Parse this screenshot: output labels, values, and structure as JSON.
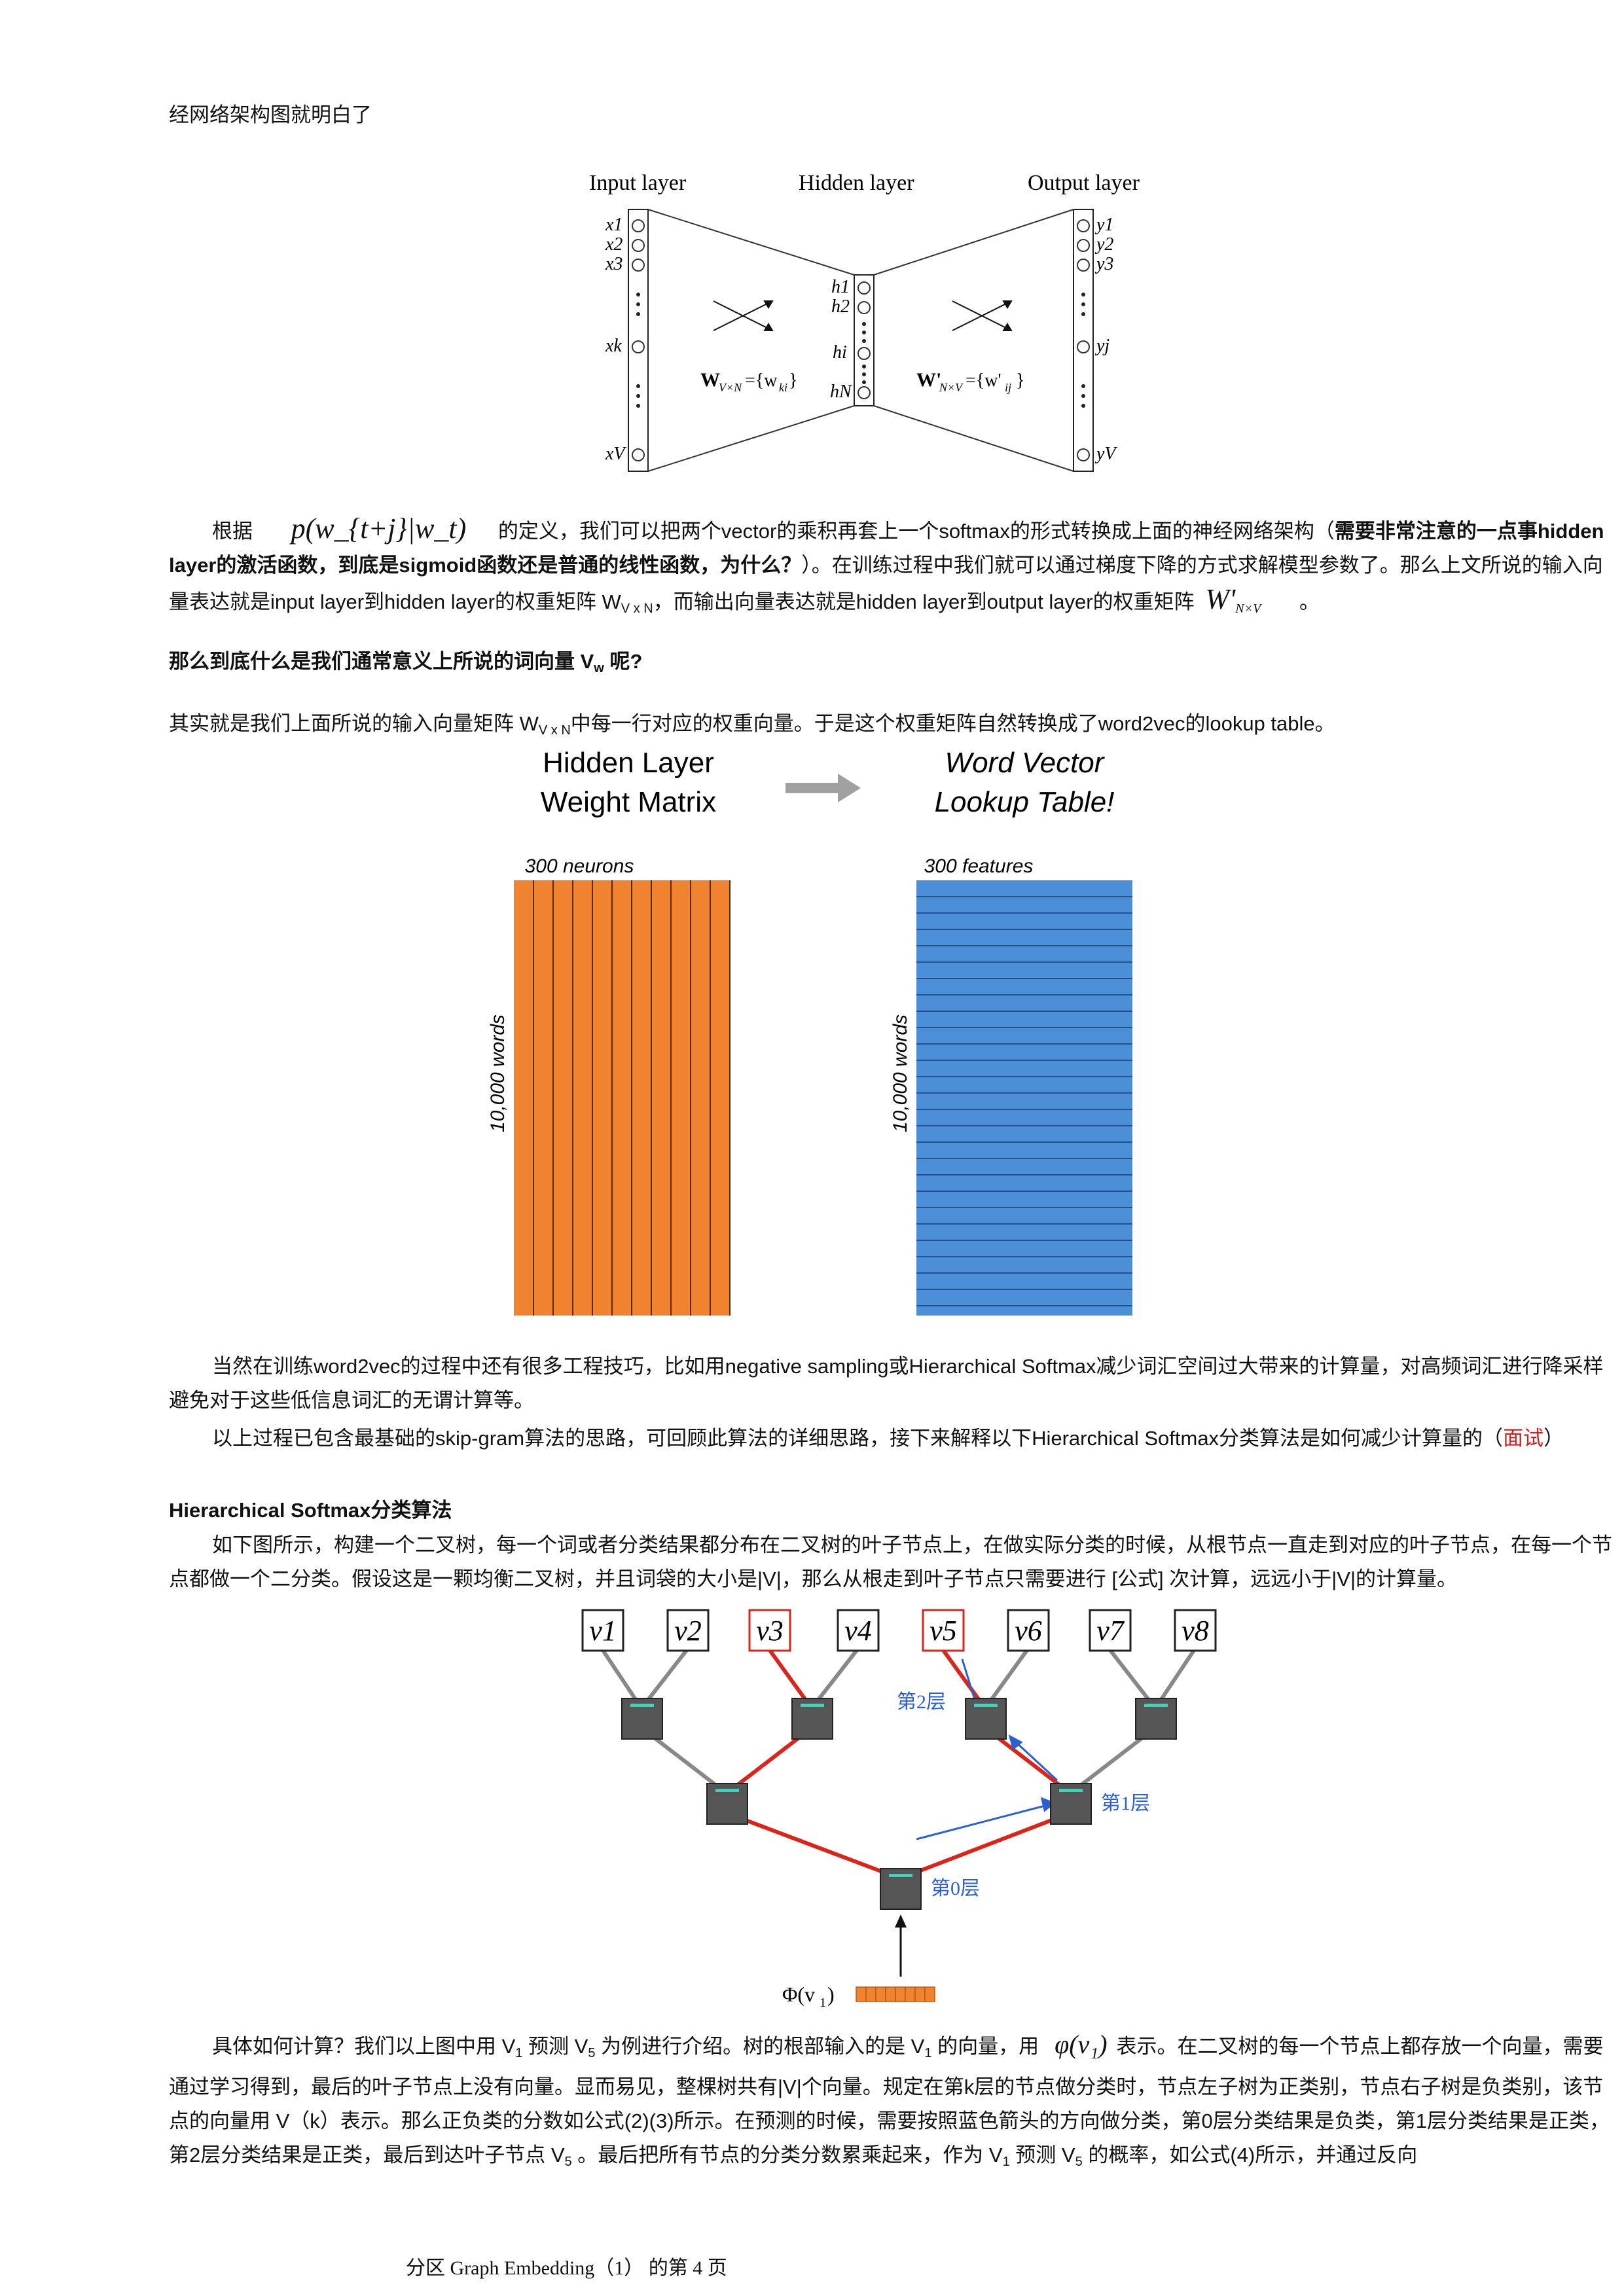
{
  "intro_line": "经网络架构图就明白了",
  "nn_figure": {
    "input_label": "Input layer",
    "hidden_label": "Hidden layer",
    "output_label": "Output layer",
    "x_labels": [
      "x1",
      "x2",
      "x3",
      "xk",
      "xV"
    ],
    "h_labels": [
      "h1",
      "h2",
      "hi",
      "hN"
    ],
    "y_labels": [
      "y1",
      "y2",
      "y3",
      "yj",
      "yV"
    ],
    "w_left": "W",
    "w_left_sub": "V×N",
    "w_left_set": "={w",
    "w_left_set_sub": "ki",
    "w_right": "W'",
    "w_right_sub": "N×V",
    "w_right_set": "={w'",
    "w_right_set_sub": "ij"
  },
  "para1": {
    "pre": "根据",
    "formula": "p(w_{t+j}|w_t)",
    "mid": "的定义，我们可以把两个vector的乘积再套上一个softmax的形式转换成上面的神经网络架构（",
    "bold": "需要非常注意的一点事hidden layer的激活函数，到底是sigmoid函数还是普通的线性函数，为什么？",
    "post": "）。在训练过程中我们就可以通过梯度下降的方式求解模型参数了。那么上文所说的输入向量表达就是input layer到hidden layer的权重矩阵 W",
    "sub1": "V x N",
    "post2": "，而输出向量表达就是hidden layer到output layer的权重矩阵",
    "formula2": "W'",
    "formula2_sub": "N×V",
    "end": "。"
  },
  "question": {
    "text": "那么到底什么是我们通常意义上所说的词向量 V",
    "sub": "w",
    "end": " 呢?"
  },
  "answer": {
    "pre": "其实就是我们上面所说的输入向量矩阵 W",
    "sub": "V x N",
    "post": "中每一行对应的权重向量。于是这个权重矩阵自然转换成了word2vec的lookup table。"
  },
  "matrix_figure": {
    "left_title_1": "Hidden Layer",
    "left_title_2": "Weight Matrix",
    "right_title_1": "Word Vector",
    "right_title_2": "Lookup Table!",
    "left_top": "300  neurons",
    "right_top": "300  features",
    "left_side": "10,000  words",
    "right_side": "10,000  words",
    "orange": "#f08230",
    "blue": "#4a8fd8"
  },
  "para2": "当然在训练word2vec的过程中还有很多工程技巧，比如用negative sampling或Hierarchical Softmax减少词汇空间过大带来的计算量，对高频词汇进行降采样避免对于这些低信息词汇的无谓计算等。",
  "para3": {
    "text": "以上过程已包含最基础的skip-gram算法的思路，可回顾此算法的详细思路，接下来解释以下Hierarchical Softmax分类算法是如何减少计算量的（",
    "red": "面试",
    "end": "）"
  },
  "section_title": "Hierarchical Softmax分类算法",
  "para4": "如下图所示，构建一个二叉树，每一个词或者分类结果都分布在二叉树的叶子节点上，在做实际分类的时候，从根节点一直走到对应的叶子节点，在每一个节点都做一个二分类。假设这是一颗均衡二叉树，并且词袋的大小是|V|，那么从根走到叶子节点只需要进行 [公式] 次计算，远远小于|V|的计算量。",
  "tree_figure": {
    "leaves": [
      "v1",
      "v2",
      "v3",
      "v4",
      "v5",
      "v6",
      "v7",
      "v8"
    ],
    "layer2": "第2层",
    "layer1": "第1层",
    "layer0": "第0层",
    "phi": "Φ(v",
    "phi_sub": "1",
    "phi_end": ")"
  },
  "para5": {
    "pre": "具体如何计算？我们以上图中用 V",
    "s1": "1",
    "t1": " 预测  V",
    "s2": "5",
    "t2": " 为例进行介绍。树的根部输入的是  V",
    "s3": "1",
    "t3": " 的向量，用",
    "formula": "φ(v₁)",
    "t4": "表示。在二叉树的每一个节点上都存放一个向量，需要通过学习得到，最后的叶子节点上没有向量。显而易见，整棵树共有|V|个向量。规定在第k层的节点做分类时，节点左子树为正类别，节点右子树是负类别，该节点的向量用 V（k）表示。那么正负类的分数如公式(2)(3)所示。在预测的时候，需要按照蓝色箭头的方向做分类，第0层分类结果是负类，第1层分类结果是正类，第2层分类结果是正类，最后到达叶子节点  V",
    "s4": "5",
    "t5": " 。最后把所有节点的分类分数累乘起来，作为 V",
    "s5": "1",
    "t6": " 预测  V",
    "s6": "5",
    "t7": " 的概率，如公式(4)所示，并通过反向"
  },
  "footer": "分区 Graph Embedding（1） 的第 4 页"
}
